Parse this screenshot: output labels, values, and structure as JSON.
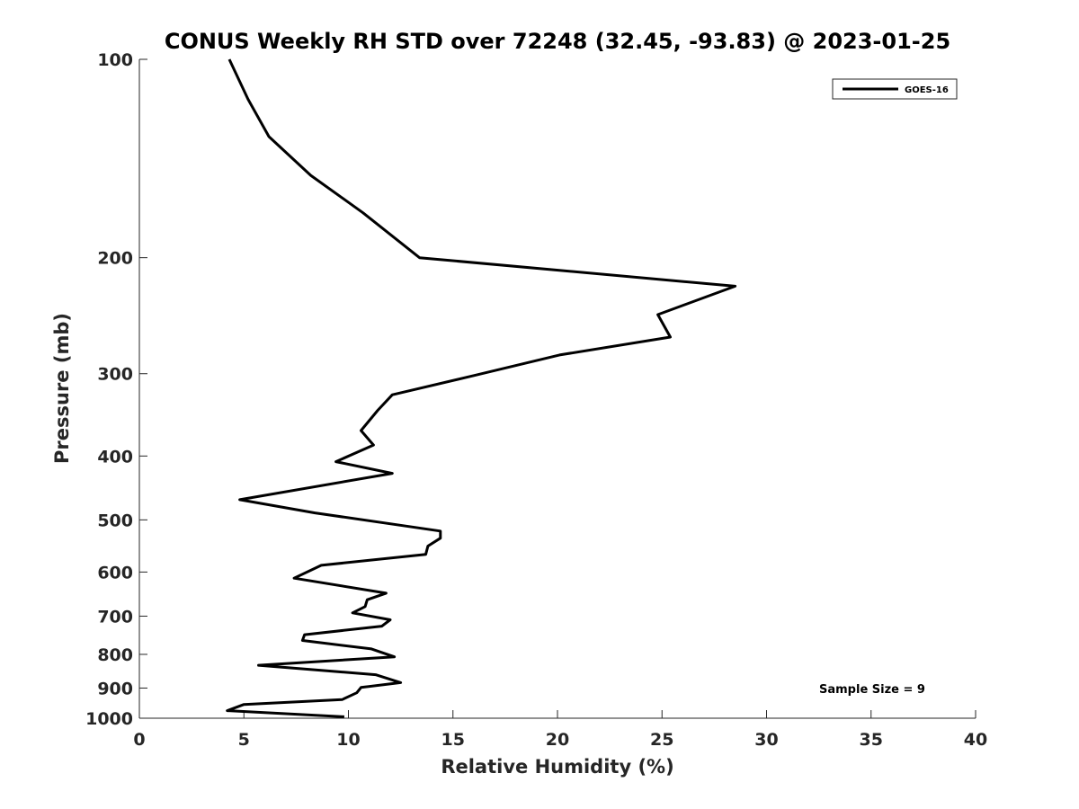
{
  "chart_data": {
    "type": "line",
    "title": "CONUS Weekly RH STD over 72248 (32.45, -93.83) @ 2023-01-25",
    "xlabel": "Relative Humidity (%)",
    "ylabel": "Pressure (mb)",
    "xlim": [
      0,
      40
    ],
    "ylim": [
      100,
      1000
    ],
    "y_scale": "log",
    "y_reversed": true,
    "x_ticks": [
      0,
      5,
      10,
      15,
      20,
      25,
      30,
      35,
      40
    ],
    "y_ticks": [
      100,
      200,
      300,
      400,
      500,
      600,
      700,
      800,
      900,
      1000
    ],
    "grid": false,
    "legend": {
      "placement": "top-right",
      "entries": [
        "GOES-16"
      ]
    },
    "annotation": "Sample Size = 9",
    "series": [
      {
        "name": "GOES-16",
        "color": "#000000",
        "x": [
          4.3,
          5.2,
          6.2,
          8.2,
          10.7,
          13.4,
          28.5,
          24.8,
          25.4,
          20.1,
          16.0,
          12.1,
          11.4,
          10.6,
          11.2,
          9.4,
          12.1,
          4.8,
          8.4,
          14.4,
          14.4,
          13.8,
          13.7,
          8.7,
          7.4,
          11.8,
          10.9,
          10.8,
          10.2,
          12.0,
          11.6,
          7.9,
          7.8,
          11.1,
          12.2,
          5.7,
          11.3,
          12.5,
          10.6,
          10.4,
          9.7,
          5.0,
          4.2,
          9.8
        ],
        "y": [
          100,
          115,
          131,
          150,
          171,
          200,
          221,
          244,
          264,
          281,
          302,
          323,
          341,
          366,
          385,
          408,
          425,
          466,
          488,
          520,
          533,
          548,
          564,
          586,
          613,
          646,
          661,
          677,
          692,
          709,
          725,
          747,
          762,
          785,
          807,
          831,
          859,
          883,
          898,
          915,
          937,
          953,
          974,
          995
        ]
      }
    ]
  }
}
